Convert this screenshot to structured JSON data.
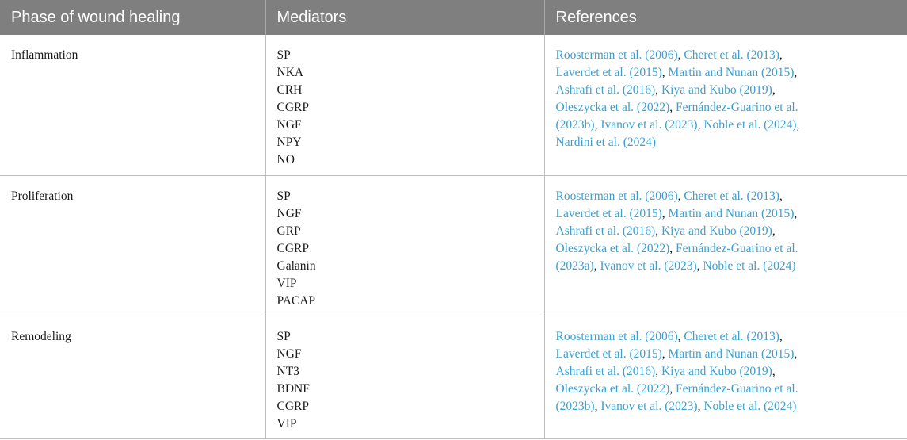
{
  "headers": {
    "phase": "Phase of wound healing",
    "mediators": "Mediators",
    "references": "References"
  },
  "rows": [
    {
      "phase": "Inflammation",
      "mediators": [
        "SP",
        "NKA",
        "CRH",
        "CGRP",
        "NGF",
        "NPY",
        "NO"
      ],
      "reference_lines": [
        [
          "Roosterman et al. (2006)",
          ", ",
          "Cheret et al. (2013)",
          ","
        ],
        [
          "Laverdet et al. (2015)",
          ", ",
          "Martin and Nunan (2015)",
          ","
        ],
        [
          "Ashrafi et al. (2016)",
          ", ",
          "Kiya and Kubo (2019)",
          ","
        ],
        [
          "Oleszycka et al. (2022)",
          ", ",
          "Fernández-Guarino et al."
        ],
        [
          "(2023b)",
          ", ",
          "Ivanov et al. (2023)",
          ", ",
          "Noble et al. (2024)",
          ","
        ],
        [
          "Nardini et al. (2024)"
        ]
      ]
    },
    {
      "phase": "Proliferation",
      "mediators": [
        "SP",
        "NGF",
        "GRP",
        "CGRP",
        "Galanin",
        "VIP",
        "PACAP"
      ],
      "reference_lines": [
        [
          "Roosterman et al. (2006)",
          ", ",
          "Cheret et al. (2013)",
          ","
        ],
        [
          "Laverdet et al. (2015)",
          ", ",
          "Martin and Nunan (2015)",
          ","
        ],
        [
          "Ashrafi et al. (2016)",
          ", ",
          "Kiya and Kubo (2019)",
          ","
        ],
        [
          "Oleszycka et al. (2022)",
          ", ",
          "Fernández-Guarino et al."
        ],
        [
          "(2023a)",
          ", ",
          "Ivanov et al. (2023)",
          ", ",
          "Noble et al. (2024)"
        ]
      ]
    },
    {
      "phase": "Remodeling",
      "mediators": [
        "SP",
        "NGF",
        "NT3",
        "BDNF",
        "CGRP",
        "VIP"
      ],
      "reference_lines": [
        [
          "Roosterman et al. (2006)",
          ", ",
          "Cheret et al. (2013)",
          ","
        ],
        [
          "Laverdet et al. (2015)",
          ", ",
          "Martin and Nunan (2015)",
          ","
        ],
        [
          "Ashrafi et al. (2016)",
          ", ",
          "Kiya and Kubo (2019)",
          ","
        ],
        [
          "Oleszycka et al. (2022)",
          ", ",
          "Fernández-Guarino et al."
        ],
        [
          "(2023b)",
          ", ",
          "Ivanov et al. (2023)",
          ", ",
          "Noble et al. (2024)"
        ]
      ]
    }
  ]
}
